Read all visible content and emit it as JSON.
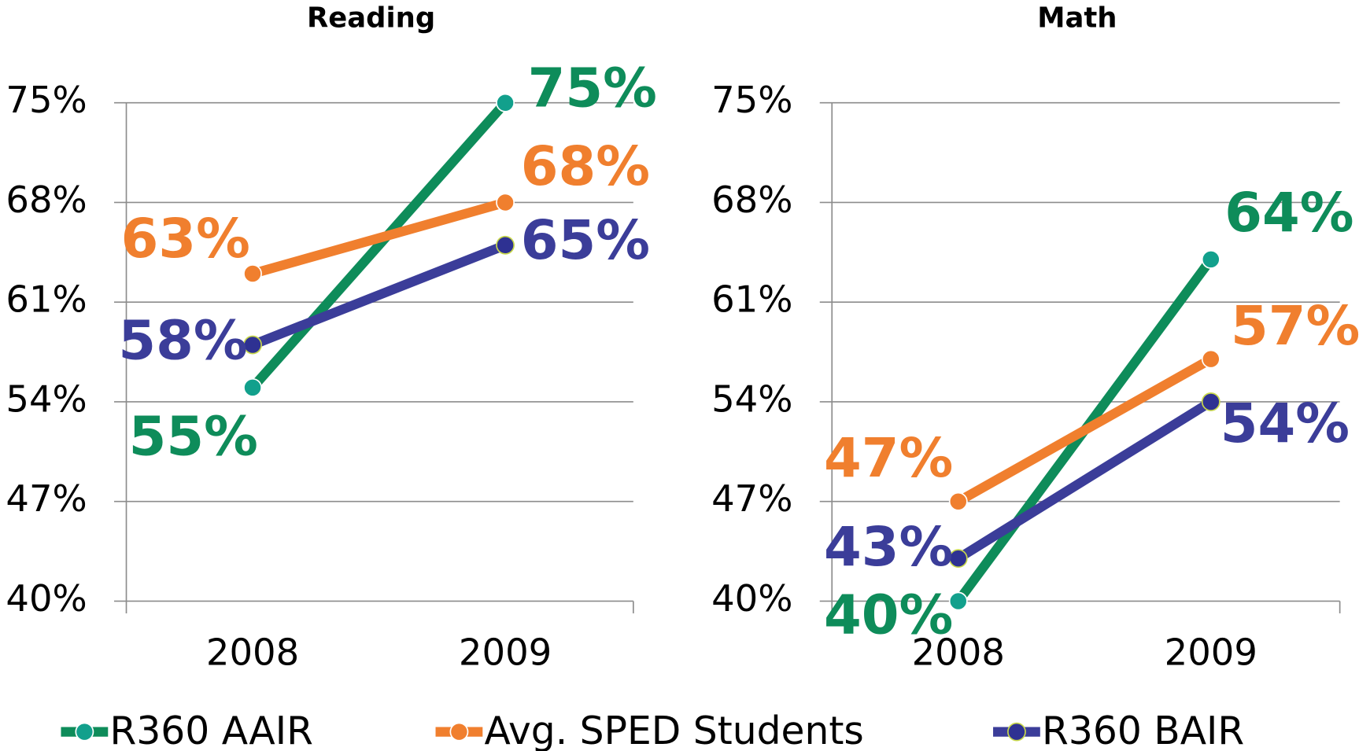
{
  "chart_data": [
    {
      "type": "line",
      "title": "Reading",
      "categories": [
        "2008",
        "2009"
      ],
      "ylim": [
        40,
        75
      ],
      "yticks": [
        {
          "value": 40,
          "label": "40%"
        },
        {
          "value": 47,
          "label": "47%"
        },
        {
          "value": 54,
          "label": "54%"
        },
        {
          "value": 61,
          "label": "61%"
        },
        {
          "value": 68,
          "label": "68%"
        },
        {
          "value": 75,
          "label": "75%"
        }
      ],
      "grid": true,
      "series": [
        {
          "name": "R360 AAIR",
          "color": "#0e8c5a",
          "marker_color": "#12a08c",
          "values": [
            55,
            75
          ],
          "value_labels": [
            "55%",
            "75%"
          ]
        },
        {
          "name": "Avg. SPED Students",
          "color": "#f07f2e",
          "marker_color": "#f07f2e",
          "values": [
            63,
            68
          ],
          "value_labels": [
            "63%",
            "68%"
          ]
        },
        {
          "name": "R360 BAIR",
          "color": "#3b3d99",
          "marker_color": "#2e3192",
          "values": [
            58,
            65
          ],
          "value_labels": [
            "58%",
            "65%"
          ]
        }
      ]
    },
    {
      "type": "line",
      "title": "Math",
      "categories": [
        "2008",
        "2009"
      ],
      "ylim": [
        40,
        75
      ],
      "yticks": [
        {
          "value": 40,
          "label": "40%"
        },
        {
          "value": 47,
          "label": "47%"
        },
        {
          "value": 54,
          "label": "54%"
        },
        {
          "value": 61,
          "label": "61%"
        },
        {
          "value": 68,
          "label": "68%"
        },
        {
          "value": 75,
          "label": "75%"
        }
      ],
      "grid": true,
      "series": [
        {
          "name": "R360 AAIR",
          "color": "#0e8c5a",
          "marker_color": "#12a08c",
          "values": [
            40,
            64
          ],
          "value_labels": [
            "40%",
            "64%"
          ]
        },
        {
          "name": "Avg. SPED Students",
          "color": "#f07f2e",
          "marker_color": "#f07f2e",
          "values": [
            47,
            57
          ],
          "value_labels": [
            "47%",
            "57%"
          ]
        },
        {
          "name": "R360 BAIR",
          "color": "#3b3d99",
          "marker_color": "#2e3192",
          "values": [
            43,
            54
          ],
          "value_labels": [
            "43%",
            "54%"
          ]
        }
      ]
    }
  ]
}
